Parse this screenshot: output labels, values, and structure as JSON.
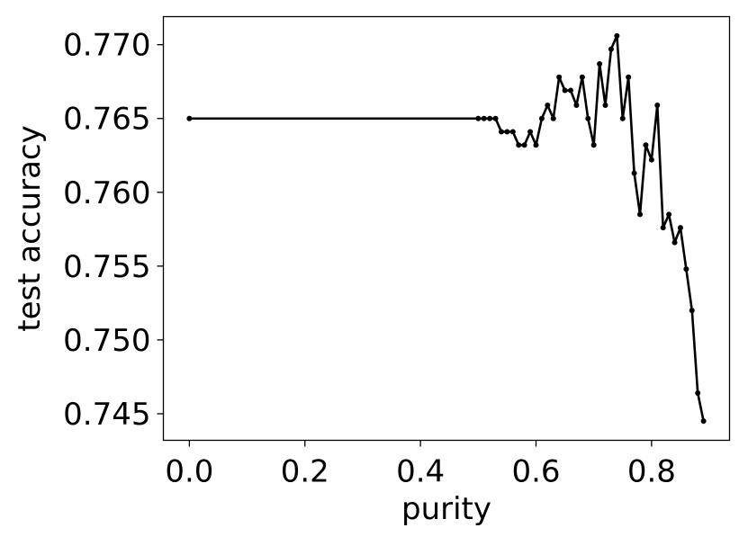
{
  "chart_data": {
    "type": "line",
    "title": "",
    "xlabel": "purity",
    "ylabel": "test accuracy",
    "xlim": [
      -0.045,
      0.935
    ],
    "ylim": [
      0.7432,
      0.7719
    ],
    "grid": false,
    "legend": "none",
    "line_color": "#000000",
    "xticks": [
      0.0,
      0.2,
      0.4,
      0.6,
      0.8
    ],
    "xtick_labels": [
      "0.0",
      "0.2",
      "0.4",
      "0.6",
      "0.8"
    ],
    "yticks": [
      0.745,
      0.75,
      0.755,
      0.76,
      0.765,
      0.77
    ],
    "ytick_labels": [
      "0.745",
      "0.750",
      "0.755",
      "0.760",
      "0.765",
      "0.770"
    ],
    "series": [
      {
        "x": [
          0.0,
          0.5,
          0.51,
          0.52,
          0.53,
          0.54,
          0.55,
          0.56,
          0.57,
          0.58,
          0.59,
          0.6,
          0.61,
          0.62,
          0.63,
          0.64,
          0.65,
          0.66,
          0.67,
          0.68,
          0.69,
          0.7,
          0.71,
          0.72,
          0.73,
          0.74,
          0.75,
          0.76,
          0.77,
          0.78,
          0.79,
          0.8,
          0.81,
          0.82,
          0.83,
          0.84,
          0.85,
          0.86,
          0.87,
          0.88,
          0.89
        ],
        "y": [
          0.765,
          0.765,
          0.765,
          0.765,
          0.765,
          0.7641,
          0.7641,
          0.7641,
          0.7632,
          0.7632,
          0.7641,
          0.7632,
          0.765,
          0.7659,
          0.765,
          0.7678,
          0.7669,
          0.7669,
          0.7659,
          0.7678,
          0.765,
          0.7632,
          0.7687,
          0.7659,
          0.7697,
          0.7706,
          0.765,
          0.7678,
          0.7613,
          0.7585,
          0.7632,
          0.7622,
          0.7659,
          0.7576,
          0.7585,
          0.7566,
          0.7576,
          0.7548,
          0.752,
          0.7464,
          0.7445
        ]
      }
    ]
  }
}
